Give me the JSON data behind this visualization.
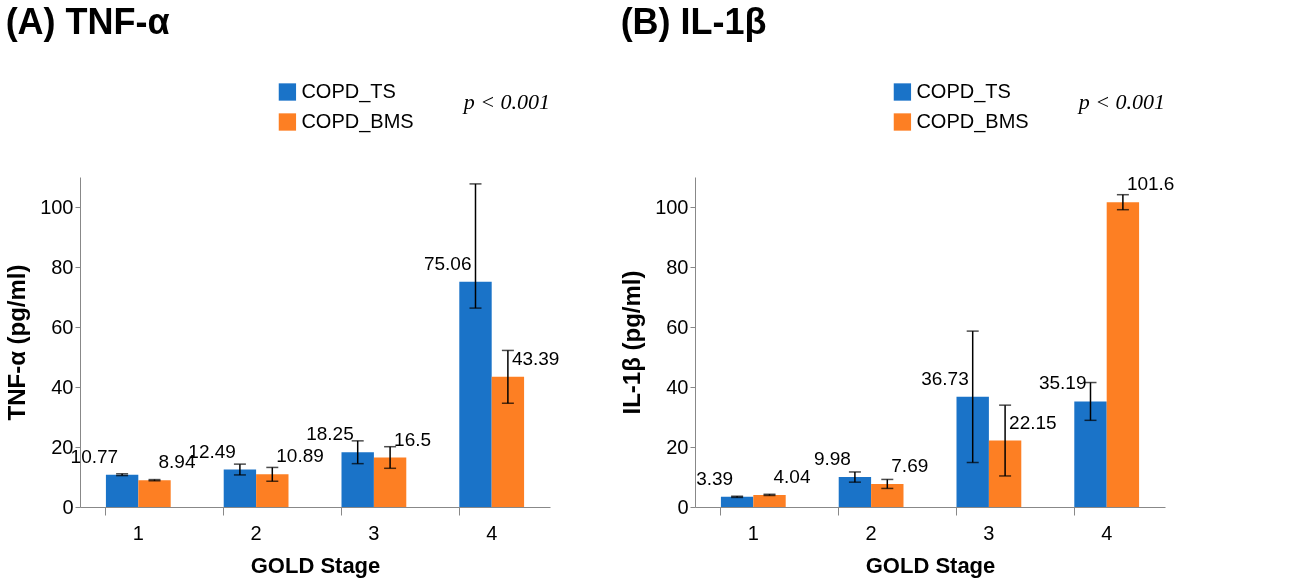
{
  "chart_data": [
    {
      "type": "bar",
      "title": "(A) TNF-α",
      "xlabel": "GOLD Stage",
      "ylabel": "TNF-α (pg/ml)",
      "categories": [
        "1",
        "2",
        "3",
        "4"
      ],
      "ylim": [
        0,
        110
      ],
      "yticks": [
        0,
        20,
        40,
        60,
        80,
        100
      ],
      "grid": false,
      "legend": "top",
      "data_labels": true,
      "annotations": [
        "p < 0.001"
      ],
      "series": [
        {
          "name": "COPD_TS",
          "color": "#1a73c8",
          "values": [
            10.77,
            12.49,
            18.25,
            75.06
          ],
          "errors": [
            0.3,
            1.8,
            3.8,
            [
              66.3,
              107.7
            ]
          ]
        },
        {
          "name": "COPD_BMS",
          "color": "#fd7f23",
          "values": [
            8.94,
            10.89,
            16.5,
            43.39
          ],
          "errors": [
            0.2,
            2.3,
            3.6,
            8.8
          ]
        }
      ]
    },
    {
      "type": "bar",
      "title": "(B) IL-1β",
      "xlabel": "GOLD Stage",
      "ylabel": "IL-1β (pg/ml)",
      "categories": [
        "1",
        "2",
        "3",
        "4"
      ],
      "ylim": [
        0,
        110
      ],
      "yticks": [
        0,
        20,
        40,
        60,
        80,
        100
      ],
      "grid": false,
      "legend": "top",
      "data_labels": true,
      "annotations": [
        "p < 0.001"
      ],
      "series": [
        {
          "name": "COPD_TS",
          "color": "#1a73c8",
          "values": [
            3.39,
            9.98,
            36.73,
            35.19
          ],
          "errors": [
            0.2,
            1.7,
            21.9,
            6.3
          ]
        },
        {
          "name": "COPD_BMS",
          "color": "#fd7f23",
          "values": [
            4.04,
            7.69,
            22.15,
            101.6
          ],
          "errors": [
            0.2,
            1.5,
            11.8,
            2.5
          ]
        }
      ]
    }
  ]
}
